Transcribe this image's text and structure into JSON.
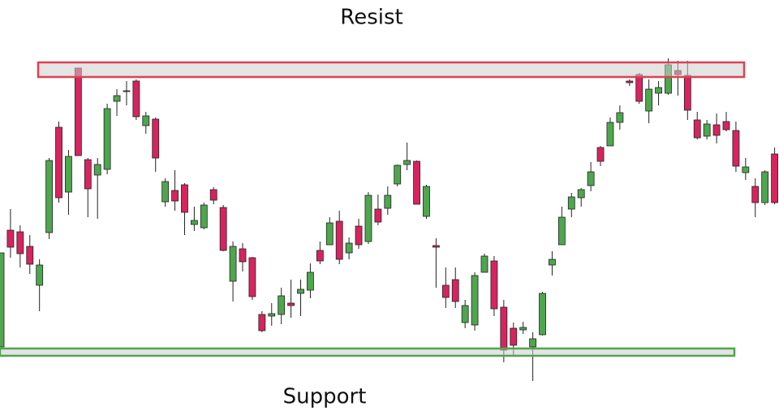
{
  "chart_data": {
    "type": "candlestick",
    "up_color": "#4ea64e",
    "down_color": "#d6245f",
    "ylim": [
      0,
      517
    ],
    "open": [
      89,
      233,
      231,
      213,
      165,
      230,
      360,
      280,
      433,
      320,
      301,
      308,
      392,
      404,
      417,
      362,
      370,
      268,
      282,
      289,
      240,
      236,
      283,
      261,
      170,
      210,
      199,
      129,
      127,
      129,
      143,
      155,
      159,
      208,
      215,
      244,
      205,
      238,
      219,
      259,
      260,
      290,
      314,
      318,
      250,
      214,
      165,
      172,
      119,
      116,
      181,
      195,
      138,
      112,
      110,
      89,
      104,
      190,
      215,
      259,
      273,
      288,
      335,
      337,
      366,
      417,
      425,
      380,
      402,
      402,
      430,
      424,
      369,
      349,
      363,
      367,
      356,
      304,
      287,
      267,
      327
    ],
    "high": [
      205,
      259,
      239,
      227,
      197,
      322,
      367,
      332,
      433,
      322,
      322,
      389,
      407,
      417,
      419,
      379,
      372,
      297,
      307,
      291,
      262,
      267,
      286,
      264,
      219,
      217,
      200,
      133,
      143,
      162,
      172,
      172,
      192,
      219,
      249,
      257,
      224,
      247,
      280,
      277,
      287,
      314,
      341,
      319,
      289,
      223,
      187,
      187,
      147,
      181,
      204,
      201,
      147,
      119,
      120,
      107,
      157,
      207,
      262,
      279,
      285,
      317,
      337,
      372,
      387,
      419,
      427,
      419,
      417,
      445,
      442,
      442,
      379,
      369,
      377,
      379,
      367,
      322,
      297,
      307,
      335
    ],
    "low": [
      89,
      199,
      187,
      179,
      133,
      222,
      267,
      252,
      325,
      249,
      247,
      302,
      374,
      387,
      369,
      352,
      305,
      262,
      257,
      227,
      232,
      234,
      265,
      207,
      145,
      182,
      147,
      107,
      115,
      117,
      125,
      127,
      149,
      191,
      215,
      191,
      197,
      210,
      216,
      239,
      252,
      287,
      307,
      265,
      247,
      162,
      137,
      137,
      112,
      109,
      181,
      127,
      70,
      77,
      105,
      47,
      103,
      177,
      215,
      249,
      262,
      281,
      312,
      337,
      357,
      411,
      389,
      365,
      387,
      400,
      399,
      369,
      345,
      345,
      340,
      355,
      305,
      295,
      249,
      264,
      265
    ],
    "close": [
      205,
      212,
      204,
      191,
      190,
      319,
      273,
      324,
      325,
      284,
      314,
      383,
      399,
      405,
      373,
      374,
      322,
      293,
      269,
      255,
      245,
      264,
      270,
      208,
      213,
      194,
      151,
      109,
      130,
      152,
      140,
      160,
      181,
      195,
      242,
      197,
      217,
      215,
      276,
      243,
      276,
      313,
      319,
      265,
      287,
      212,
      150,
      145,
      140,
      177,
      201,
      136,
      85,
      91,
      113,
      99,
      155,
      197,
      249,
      274,
      283,
      305,
      318,
      366,
      378,
      415,
      392,
      407,
      409,
      437,
      425,
      381,
      347,
      364,
      350,
      357,
      312,
      311,
      267,
      305,
      267
    ],
    "zones": [
      {
        "label": "Resist",
        "low": 422,
        "high": 440,
        "color": "#e0404f"
      },
      {
        "label": "Support",
        "low": 78,
        "high": 87,
        "color": "#4ea64e"
      }
    ]
  }
}
